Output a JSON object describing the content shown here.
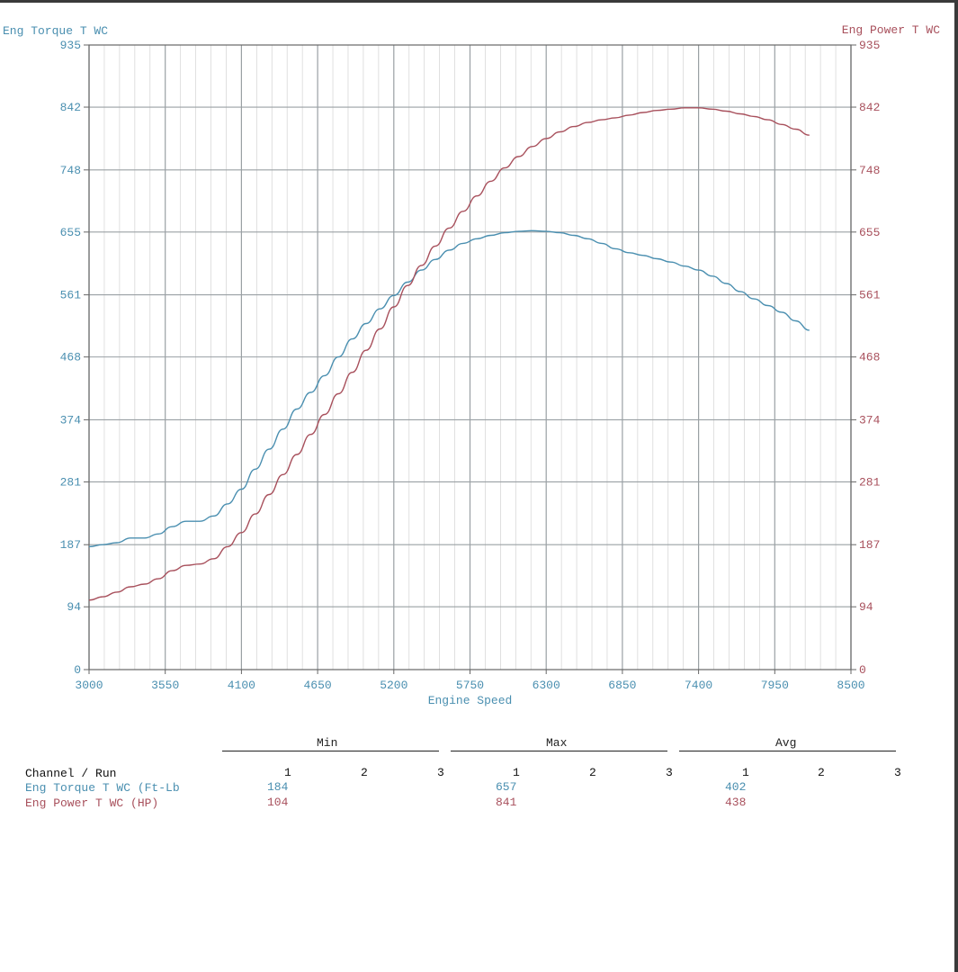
{
  "chart_data": {
    "type": "line",
    "left_axis_title": "Eng Torque T WC",
    "right_axis_title": "Eng Power T WC",
    "xlabel": "Engine Speed",
    "xlim": [
      3000,
      8500
    ],
    "ylim": [
      0,
      935
    ],
    "x_ticks": [
      "3000",
      "3550",
      "4100",
      "4650",
      "5200",
      "5750",
      "6300",
      "6850",
      "7400",
      "7950",
      "8500"
    ],
    "y_ticks": [
      "0",
      "94",
      "187",
      "281",
      "374",
      "468",
      "561",
      "655",
      "748",
      "842",
      "935"
    ],
    "grid": true,
    "colors": {
      "torque": "#4a8fb0",
      "power": "#a8505c"
    },
    "series": [
      {
        "name": "Eng Torque T WC (Ft-Lb",
        "axis": "left",
        "color": "#4a8fb0",
        "points": [
          [
            3000,
            184
          ],
          [
            3100,
            187
          ],
          [
            3200,
            190
          ],
          [
            3300,
            197
          ],
          [
            3400,
            197
          ],
          [
            3500,
            203
          ],
          [
            3600,
            214
          ],
          [
            3700,
            222
          ],
          [
            3800,
            222
          ],
          [
            3900,
            230
          ],
          [
            4000,
            248
          ],
          [
            4100,
            270
          ],
          [
            4200,
            300
          ],
          [
            4300,
            330
          ],
          [
            4400,
            360
          ],
          [
            4500,
            390
          ],
          [
            4600,
            415
          ],
          [
            4700,
            440
          ],
          [
            4800,
            468
          ],
          [
            4900,
            495
          ],
          [
            5000,
            518
          ],
          [
            5100,
            540
          ],
          [
            5200,
            560
          ],
          [
            5300,
            580
          ],
          [
            5400,
            598
          ],
          [
            5500,
            614
          ],
          [
            5600,
            628
          ],
          [
            5700,
            638
          ],
          [
            5800,
            645
          ],
          [
            5900,
            650
          ],
          [
            6000,
            654
          ],
          [
            6100,
            656
          ],
          [
            6200,
            657
          ],
          [
            6300,
            656
          ],
          [
            6400,
            654
          ],
          [
            6500,
            650
          ],
          [
            6600,
            645
          ],
          [
            6700,
            638
          ],
          [
            6800,
            630
          ],
          [
            6900,
            624
          ],
          [
            7000,
            620
          ],
          [
            7100,
            615
          ],
          [
            7200,
            610
          ],
          [
            7300,
            604
          ],
          [
            7400,
            598
          ],
          [
            7500,
            589
          ],
          [
            7600,
            578
          ],
          [
            7700,
            566
          ],
          [
            7800,
            555
          ],
          [
            7900,
            545
          ],
          [
            8000,
            535
          ],
          [
            8100,
            522
          ],
          [
            8200,
            508
          ]
        ]
      },
      {
        "name": "Eng Power T WC (HP)",
        "axis": "right",
        "color": "#a8505c",
        "points": [
          [
            3000,
            104
          ],
          [
            3100,
            109
          ],
          [
            3200,
            116
          ],
          [
            3300,
            124
          ],
          [
            3400,
            128
          ],
          [
            3500,
            136
          ],
          [
            3600,
            148
          ],
          [
            3700,
            156
          ],
          [
            3800,
            158
          ],
          [
            3900,
            166
          ],
          [
            4000,
            184
          ],
          [
            4100,
            205
          ],
          [
            4200,
            233
          ],
          [
            4300,
            262
          ],
          [
            4400,
            292
          ],
          [
            4500,
            322
          ],
          [
            4600,
            352
          ],
          [
            4700,
            382
          ],
          [
            4800,
            413
          ],
          [
            4900,
            445
          ],
          [
            5000,
            478
          ],
          [
            5100,
            510
          ],
          [
            5200,
            543
          ],
          [
            5300,
            575
          ],
          [
            5400,
            605
          ],
          [
            5500,
            634
          ],
          [
            5600,
            661
          ],
          [
            5700,
            686
          ],
          [
            5800,
            709
          ],
          [
            5900,
            731
          ],
          [
            6000,
            751
          ],
          [
            6100,
            768
          ],
          [
            6200,
            783
          ],
          [
            6300,
            795
          ],
          [
            6400,
            805
          ],
          [
            6500,
            813
          ],
          [
            6600,
            819
          ],
          [
            6700,
            823
          ],
          [
            6800,
            826
          ],
          [
            6900,
            830
          ],
          [
            7000,
            834
          ],
          [
            7100,
            837
          ],
          [
            7200,
            839
          ],
          [
            7300,
            841
          ],
          [
            7400,
            841
          ],
          [
            7500,
            839
          ],
          [
            7600,
            836
          ],
          [
            7700,
            832
          ],
          [
            7800,
            828
          ],
          [
            7900,
            823
          ],
          [
            8000,
            816
          ],
          [
            8100,
            809
          ],
          [
            8200,
            800
          ]
        ]
      }
    ]
  },
  "stats": {
    "groups": [
      "Min",
      "Max",
      "Avg"
    ],
    "header_label": "Channel / Run",
    "run_labels": [
      "1",
      "2",
      "3"
    ],
    "rows": [
      {
        "label": "Eng Torque T WC (Ft-Lb",
        "min": "184",
        "max": "657",
        "avg": "402"
      },
      {
        "label": "Eng Power T WC (HP)",
        "min": "104",
        "max": "841",
        "avg": "438"
      }
    ]
  }
}
